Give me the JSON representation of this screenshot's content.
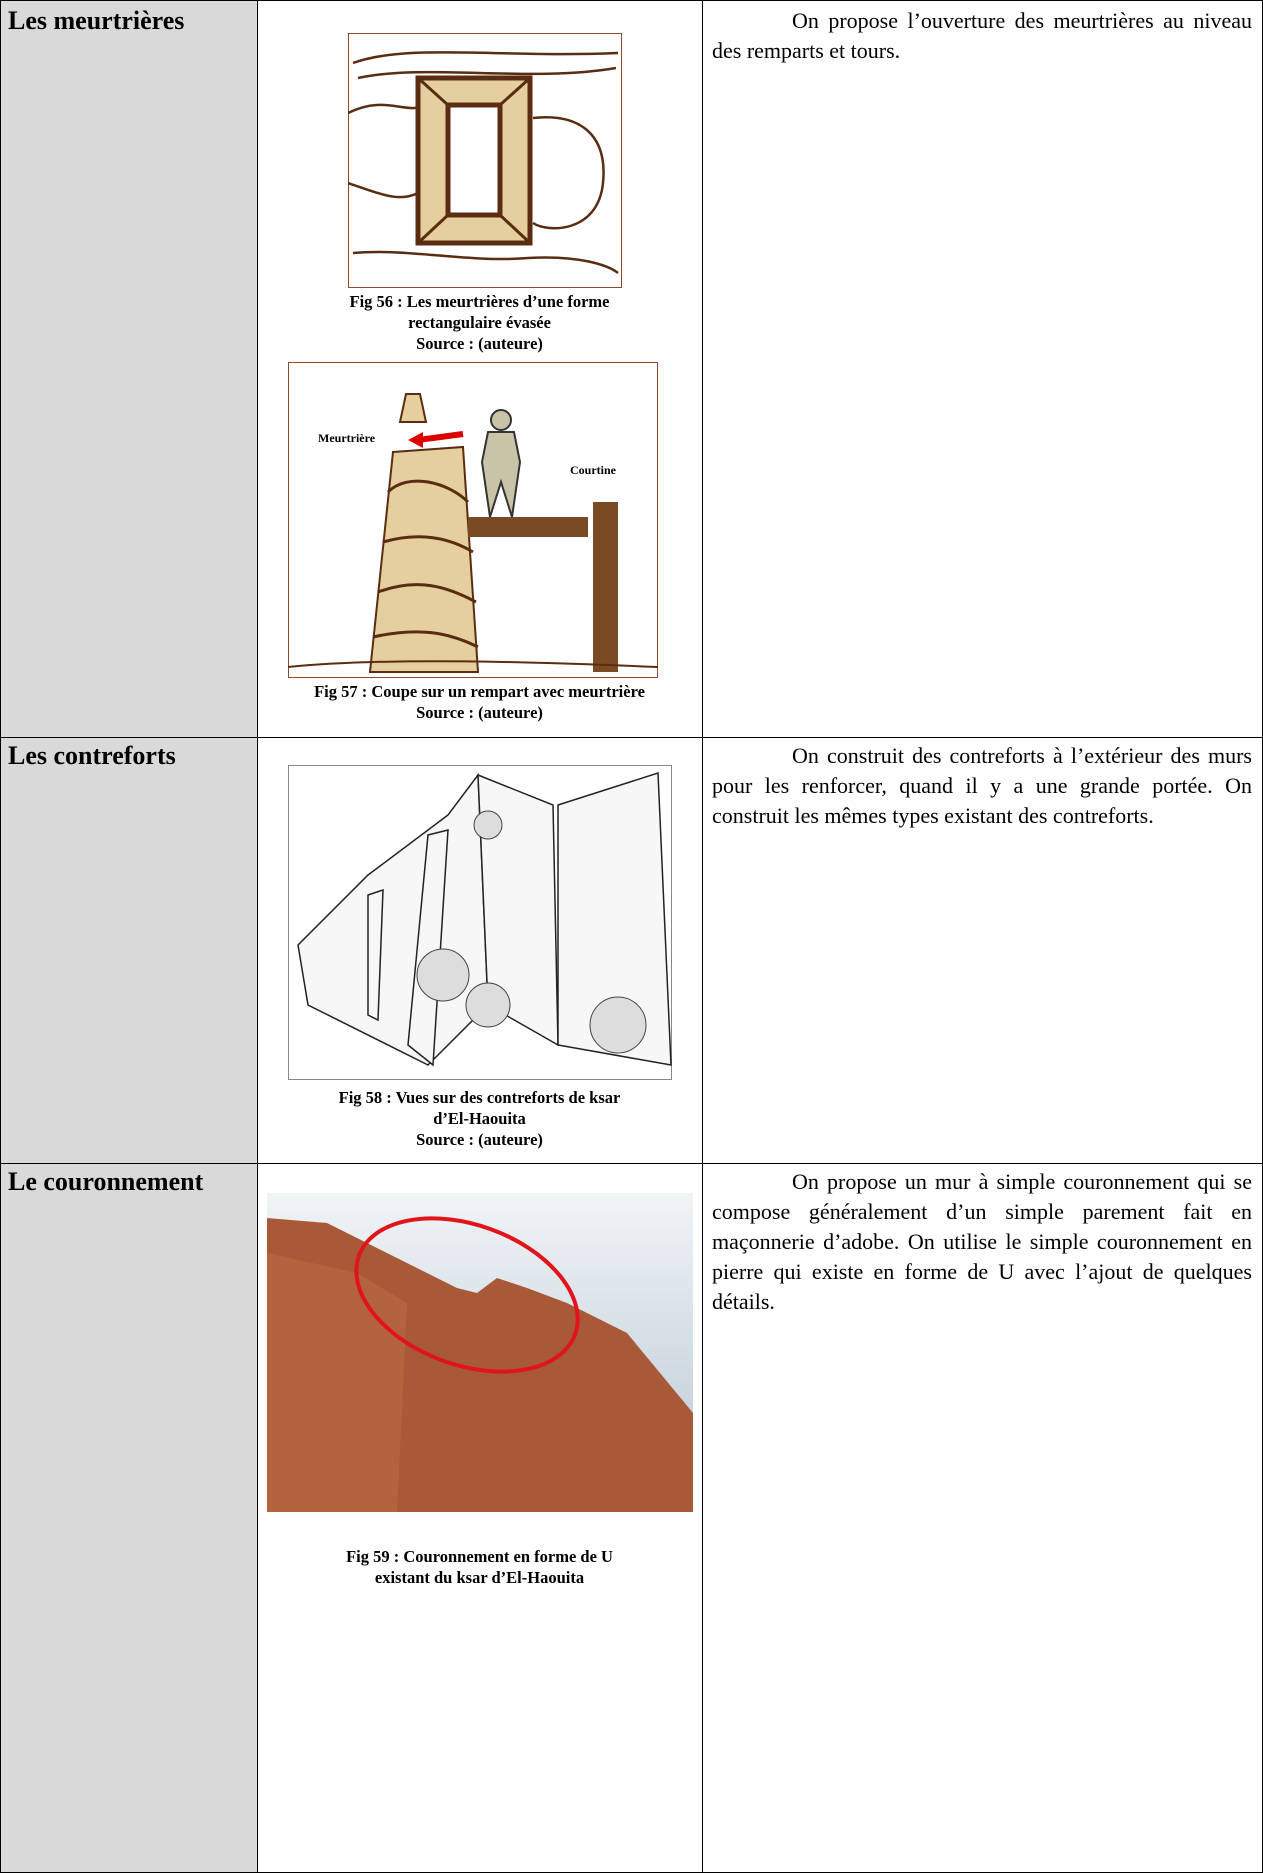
{
  "table": {
    "rows": [
      {
        "label": "Les meurtrières",
        "figures": [
          {
            "caption": [
              "Fig 56 : Les meurtrières d’une forme",
              "rectangulaire évasée",
              "Source : (auteure)"
            ]
          },
          {
            "labels": [
              "Meurtrière",
              "Courtine"
            ],
            "caption": [
              "Fig 57 : Coupe sur un rempart avec meurtrière",
              "Source : (auteure)"
            ]
          }
        ],
        "text": "On propose l’ouverture des meurtrières au niveau des remparts et tours."
      },
      {
        "label": "Les contreforts",
        "figures": [
          {
            "caption": [
              "Fig 58 : Vues sur des contreforts de ksar",
              "d’El-Haouita",
              "Source : (auteure)"
            ]
          }
        ],
        "text": "On construit des contreforts à l’extérieur des murs pour les renforcer, quand il y a une grande portée. On construit les mêmes types existant des contreforts."
      },
      {
        "label": "Le couronnement",
        "figures": [
          {
            "caption": [
              "Fig 59 : Couronnement en forme de U",
              "existant du ksar d’El-Haouita"
            ]
          }
        ],
        "text": "On propose un mur à simple couronnement qui se compose généralement d’un simple parement fait en maçonnerie d’adobe. On utilise le simple couronnement en pierre qui existe en forme de U avec l’ajout de quelques détails."
      }
    ]
  }
}
